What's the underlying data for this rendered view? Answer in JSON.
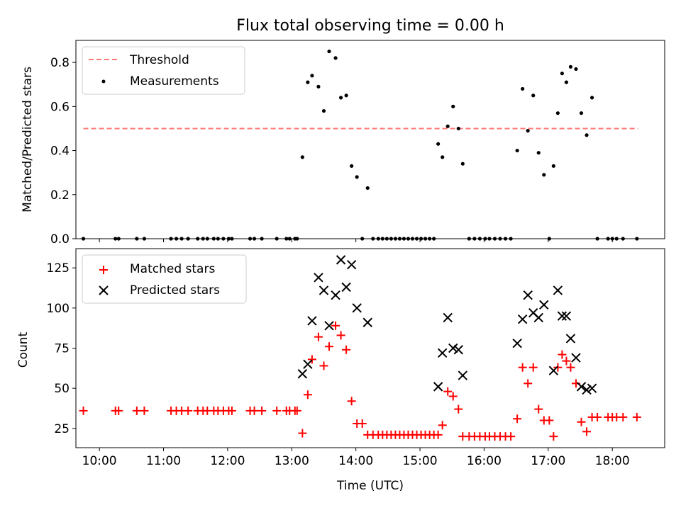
{
  "chart_data": [
    {
      "type": "scatter",
      "title": "Flux total observing time = 0.00 h",
      "xlabel": "",
      "ylabel": "Matched/Predicted stars",
      "xlim": [
        "09:38",
        "18:49"
      ],
      "ylim": [
        0,
        0.9
      ],
      "yticks": [
        0.0,
        0.2,
        0.4,
        0.6,
        0.8
      ],
      "ytick_labels": [
        "0.0",
        "0.2",
        "0.4",
        "0.6",
        "0.8"
      ],
      "legend_location": "upper left",
      "threshold": {
        "name": "Threshold",
        "y": 0.5,
        "x_range": [
          "09:45",
          "18:24"
        ],
        "color": "#ff7777",
        "style": "dashed"
      },
      "series": [
        {
          "name": "Measurements",
          "color": "#000000",
          "marker": "dot",
          "points": [
            [
              "09:45",
              0
            ],
            [
              "10:15",
              0
            ],
            [
              "10:18",
              0
            ],
            [
              "10:35",
              0
            ],
            [
              "10:42",
              0
            ],
            [
              "11:07",
              0
            ],
            [
              "11:12",
              0
            ],
            [
              "11:17",
              0
            ],
            [
              "11:23",
              0
            ],
            [
              "11:32",
              0
            ],
            [
              "11:37",
              0
            ],
            [
              "11:41",
              0
            ],
            [
              "11:47",
              0
            ],
            [
              "11:51",
              0
            ],
            [
              "11:56",
              0
            ],
            [
              "12:01",
              0
            ],
            [
              "12:04",
              0
            ],
            [
              "12:21",
              0
            ],
            [
              "12:25",
              0
            ],
            [
              "12:32",
              0
            ],
            [
              "12:46",
              0
            ],
            [
              "12:55",
              0
            ],
            [
              "12:58",
              0
            ],
            [
              "13:03",
              0
            ],
            [
              "13:05",
              0
            ],
            [
              "13:10",
              0.37
            ],
            [
              "13:15",
              0.71
            ],
            [
              "13:19",
              0.74
            ],
            [
              "13:25",
              0.69
            ],
            [
              "13:30",
              0.58
            ],
            [
              "13:35",
              0.85
            ],
            [
              "13:41",
              0.82
            ],
            [
              "13:46",
              0.64
            ],
            [
              "13:51",
              0.65
            ],
            [
              "13:56",
              0.33
            ],
            [
              "14:01",
              0.28
            ],
            [
              "14:06",
              0
            ],
            [
              "14:11",
              0.23
            ],
            [
              "14:16",
              0
            ],
            [
              "14:21",
              0
            ],
            [
              "14:25",
              0
            ],
            [
              "14:29",
              0
            ],
            [
              "14:33",
              0
            ],
            [
              "14:37",
              0
            ],
            [
              "14:41",
              0
            ],
            [
              "14:45",
              0
            ],
            [
              "14:49",
              0
            ],
            [
              "14:53",
              0
            ],
            [
              "14:57",
              0
            ],
            [
              "15:01",
              0
            ],
            [
              "15:05",
              0
            ],
            [
              "15:09",
              0
            ],
            [
              "15:13",
              0
            ],
            [
              "15:17",
              0.43
            ],
            [
              "15:21",
              0.37
            ],
            [
              "15:26",
              0.51
            ],
            [
              "15:31",
              0.6
            ],
            [
              "15:36",
              0.5
            ],
            [
              "15:40",
              0.34
            ],
            [
              "15:46",
              0
            ],
            [
              "15:51",
              0
            ],
            [
              "15:56",
              0
            ],
            [
              "16:01",
              0
            ],
            [
              "16:05",
              0
            ],
            [
              "16:10",
              0
            ],
            [
              "16:15",
              0
            ],
            [
              "16:20",
              0
            ],
            [
              "16:25",
              0
            ],
            [
              "16:31",
              0.4
            ],
            [
              "16:36",
              0.68
            ],
            [
              "16:41",
              0.49
            ],
            [
              "16:46",
              0.65
            ],
            [
              "16:51",
              0.39
            ],
            [
              "16:56",
              0.29
            ],
            [
              "17:01",
              0
            ],
            [
              "17:05",
              0.33
            ],
            [
              "17:09",
              0.57
            ],
            [
              "17:13",
              0.75
            ],
            [
              "17:17",
              0.71
            ],
            [
              "17:21",
              0.78
            ],
            [
              "17:26",
              0.77
            ],
            [
              "17:31",
              0.57
            ],
            [
              "17:36",
              0.47
            ],
            [
              "17:41",
              0.64
            ],
            [
              "17:46",
              0
            ],
            [
              "17:56",
              0
            ],
            [
              "18:00",
              0
            ],
            [
              "18:04",
              0
            ],
            [
              "18:10",
              0
            ],
            [
              "18:23",
              0
            ]
          ]
        }
      ]
    },
    {
      "type": "scatter",
      "xlabel": "Time (UTC)",
      "ylabel": "Count",
      "xlim": [
        "09:38",
        "18:49"
      ],
      "ylim": [
        13,
        137
      ],
      "xticks": [
        "10:00",
        "11:00",
        "12:00",
        "13:00",
        "14:00",
        "15:00",
        "16:00",
        "17:00",
        "18:00"
      ],
      "yticks": [
        25,
        50,
        75,
        100,
        125
      ],
      "ytick_labels": [
        "25",
        "50",
        "75",
        "100",
        "125"
      ],
      "legend_location": "upper left",
      "series": [
        {
          "name": "Matched stars",
          "color": "#ff0000",
          "marker": "plus",
          "points": [
            [
              "09:45",
              36
            ],
            [
              "10:15",
              36
            ],
            [
              "10:18",
              36
            ],
            [
              "10:35",
              36
            ],
            [
              "10:42",
              36
            ],
            [
              "11:07",
              36
            ],
            [
              "11:12",
              36
            ],
            [
              "11:17",
              36
            ],
            [
              "11:23",
              36
            ],
            [
              "11:32",
              36
            ],
            [
              "11:37",
              36
            ],
            [
              "11:41",
              36
            ],
            [
              "11:47",
              36
            ],
            [
              "11:51",
              36
            ],
            [
              "11:56",
              36
            ],
            [
              "12:01",
              36
            ],
            [
              "12:04",
              36
            ],
            [
              "12:21",
              36
            ],
            [
              "12:25",
              36
            ],
            [
              "12:32",
              36
            ],
            [
              "12:46",
              36
            ],
            [
              "12:55",
              36
            ],
            [
              "12:58",
              36
            ],
            [
              "13:03",
              36
            ],
            [
              "13:05",
              36
            ],
            [
              "13:10",
              22
            ],
            [
              "13:15",
              46
            ],
            [
              "13:19",
              68
            ],
            [
              "13:25",
              82
            ],
            [
              "13:30",
              64
            ],
            [
              "13:35",
              76
            ],
            [
              "13:41",
              89
            ],
            [
              "13:46",
              83
            ],
            [
              "13:51",
              74
            ],
            [
              "13:56",
              42
            ],
            [
              "14:01",
              28
            ],
            [
              "14:06",
              28
            ],
            [
              "14:11",
              21
            ],
            [
              "14:16",
              21
            ],
            [
              "14:21",
              21
            ],
            [
              "14:25",
              21
            ],
            [
              "14:29",
              21
            ],
            [
              "14:33",
              21
            ],
            [
              "14:37",
              21
            ],
            [
              "14:41",
              21
            ],
            [
              "14:45",
              21
            ],
            [
              "14:49",
              21
            ],
            [
              "14:53",
              21
            ],
            [
              "14:57",
              21
            ],
            [
              "15:01",
              21
            ],
            [
              "15:05",
              21
            ],
            [
              "15:09",
              21
            ],
            [
              "15:13",
              21
            ],
            [
              "15:17",
              21
            ],
            [
              "15:21",
              27
            ],
            [
              "15:26",
              48
            ],
            [
              "15:31",
              45
            ],
            [
              "15:36",
              37
            ],
            [
              "15:40",
              20
            ],
            [
              "15:46",
              20
            ],
            [
              "15:51",
              20
            ],
            [
              "15:56",
              20
            ],
            [
              "16:01",
              20
            ],
            [
              "16:05",
              20
            ],
            [
              "16:10",
              20
            ],
            [
              "16:15",
              20
            ],
            [
              "16:20",
              20
            ],
            [
              "16:25",
              20
            ],
            [
              "16:31",
              31
            ],
            [
              "16:36",
              63
            ],
            [
              "16:41",
              53
            ],
            [
              "16:46",
              63
            ],
            [
              "16:51",
              37
            ],
            [
              "16:56",
              30
            ],
            [
              "17:01",
              30
            ],
            [
              "17:05",
              20
            ],
            [
              "17:09",
              63
            ],
            [
              "17:13",
              71
            ],
            [
              "17:17",
              67
            ],
            [
              "17:21",
              63
            ],
            [
              "17:26",
              53
            ],
            [
              "17:31",
              29
            ],
            [
              "17:36",
              23
            ],
            [
              "17:41",
              32
            ],
            [
              "17:46",
              32
            ],
            [
              "17:56",
              32
            ],
            [
              "18:00",
              32
            ],
            [
              "18:04",
              32
            ],
            [
              "18:10",
              32
            ],
            [
              "18:23",
              32
            ]
          ]
        },
        {
          "name": "Predicted stars",
          "color": "#000000",
          "marker": "x",
          "points": [
            [
              "13:10",
              59
            ],
            [
              "13:15",
              65
            ],
            [
              "13:19",
              92
            ],
            [
              "13:25",
              119
            ],
            [
              "13:30",
              111
            ],
            [
              "13:35",
              89
            ],
            [
              "13:41",
              108
            ],
            [
              "13:46",
              130
            ],
            [
              "13:51",
              113
            ],
            [
              "13:56",
              127
            ],
            [
              "14:01",
              100
            ],
            [
              "14:11",
              91
            ],
            [
              "15:17",
              51
            ],
            [
              "15:21",
              72
            ],
            [
              "15:26",
              94
            ],
            [
              "15:31",
              75
            ],
            [
              "15:36",
              74
            ],
            [
              "15:40",
              58
            ],
            [
              "16:31",
              78
            ],
            [
              "16:36",
              93
            ],
            [
              "16:41",
              108
            ],
            [
              "16:46",
              97
            ],
            [
              "16:51",
              94
            ],
            [
              "16:56",
              102
            ],
            [
              "17:05",
              61
            ],
            [
              "17:09",
              111
            ],
            [
              "17:13",
              95
            ],
            [
              "17:17",
              95
            ],
            [
              "17:21",
              81
            ],
            [
              "17:26",
              69
            ],
            [
              "17:31",
              51
            ],
            [
              "17:36",
              49
            ],
            [
              "17:41",
              50
            ]
          ]
        }
      ]
    }
  ]
}
